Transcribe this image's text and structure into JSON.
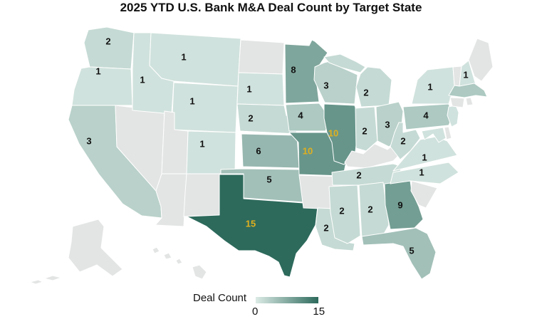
{
  "title": "2025 YTD U.S. Bank M&A Deal Count by Target State",
  "legend": {
    "label": "Deal Count",
    "min_label": "0",
    "max_label": "15"
  },
  "colors": {
    "scale_min": "#dcebe6",
    "scale_max": "#2d6a5c",
    "no_data": "#e3e4e4",
    "border": "#ffffff",
    "label_dark": "#111111",
    "label_gold": "#e0b01e",
    "title": "#111111"
  },
  "chart_data": {
    "type": "heatmap",
    "subtype": "us-state-choropleth",
    "title": "2025 YTD U.S. Bank M&A Deal Count by Target State",
    "legend": {
      "label": "Deal Count",
      "min": 0,
      "max": 15
    },
    "gold_label_threshold": 10,
    "label_color_rule": "deal counts of 10 or more are shown in gold, others in black",
    "states": [
      {
        "state": "WA",
        "value": 2
      },
      {
        "state": "OR",
        "value": 1
      },
      {
        "state": "CA",
        "value": 3
      },
      {
        "state": "ID",
        "value": 1
      },
      {
        "state": "MT",
        "value": 1
      },
      {
        "state": "WY",
        "value": 1
      },
      {
        "state": "CO",
        "value": 1
      },
      {
        "state": "SD",
        "value": 1
      },
      {
        "state": "NE",
        "value": 2
      },
      {
        "state": "KS",
        "value": 6
      },
      {
        "state": "OK",
        "value": 5
      },
      {
        "state": "TX",
        "value": 15
      },
      {
        "state": "MN",
        "value": 8
      },
      {
        "state": "IA",
        "value": 4
      },
      {
        "state": "MO",
        "value": 10
      },
      {
        "state": "AR",
        "value": null
      },
      {
        "state": "LA",
        "value": 2
      },
      {
        "state": "WI",
        "value": 3
      },
      {
        "state": "IL",
        "value": 10
      },
      {
        "state": "MS",
        "value": 2
      },
      {
        "state": "MI",
        "value": 2
      },
      {
        "state": "IN",
        "value": 2
      },
      {
        "state": "OH",
        "value": 3
      },
      {
        "state": "TN",
        "value": 2
      },
      {
        "state": "AL",
        "value": 2
      },
      {
        "state": "GA",
        "value": 9
      },
      {
        "state": "FL",
        "value": 5
      },
      {
        "state": "NC",
        "value": 1
      },
      {
        "state": "VA",
        "value": 1
      },
      {
        "state": "WV",
        "value": 2
      },
      {
        "state": "PA",
        "value": 4
      },
      {
        "state": "NY",
        "value": 1
      },
      {
        "state": "NH",
        "value": 1
      }
    ],
    "colored_unlabeled_states": [
      {
        "state": "MA",
        "approx_value": 4
      },
      {
        "state": "NJ",
        "approx_value": 1
      },
      {
        "state": "MD",
        "approx_value": 1
      }
    ],
    "no_data_states": [
      "ND",
      "NV",
      "UT",
      "AZ",
      "NM",
      "AR",
      "KY",
      "SC",
      "DE",
      "VT",
      "ME",
      "CT",
      "RI",
      "AK",
      "HI"
    ]
  }
}
